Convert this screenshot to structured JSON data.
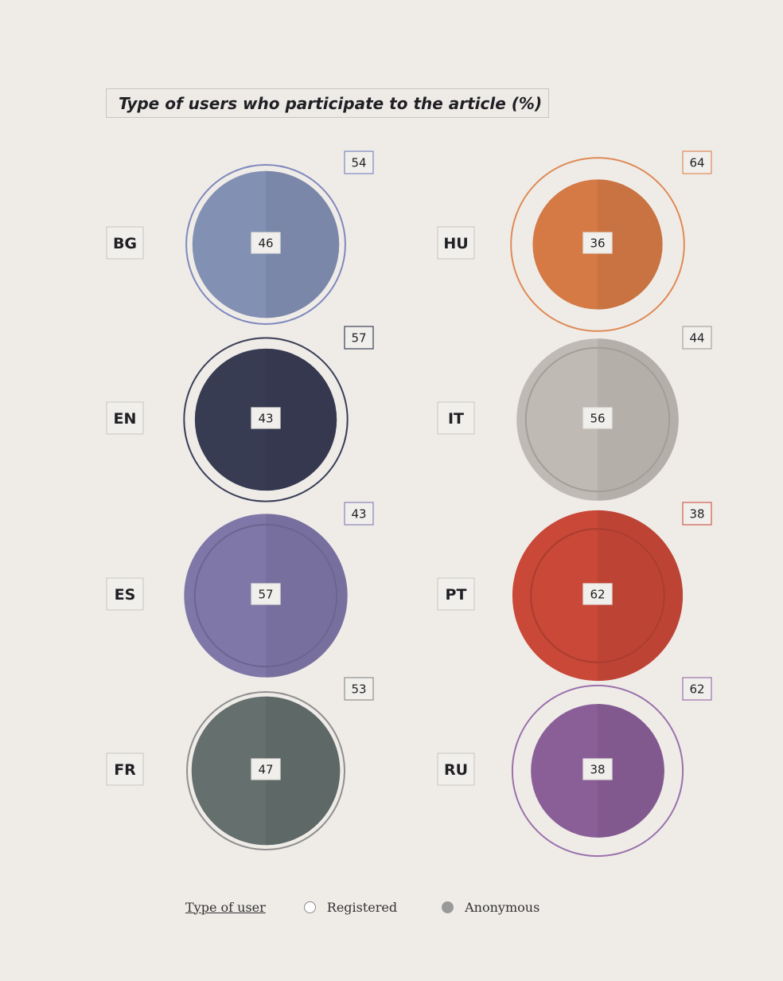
{
  "chart_data": {
    "type": "proportional-circles",
    "title": "Type of users who participate to the article (%)",
    "series_names": [
      "Registered",
      "Anonymous"
    ],
    "legend": {
      "title": "Type of user",
      "items": [
        "Registered",
        "Anonymous"
      ],
      "position": "bottom"
    },
    "groups": [
      {
        "label": "BG",
        "registered": 54,
        "anonymous": 46,
        "color": "#8290b3",
        "ring": "#7f88bd"
      },
      {
        "label": "EN",
        "registered": 57,
        "anonymous": 43,
        "color": "#383c53",
        "ring": "#3b3f57"
      },
      {
        "label": "ES",
        "registered": 43,
        "anonymous": 57,
        "color": "#7f77a8",
        "ring": "#8a84b8"
      },
      {
        "label": "FR",
        "registered": 53,
        "anonymous": 47,
        "color": "#646f6e",
        "ring": "#8f8f8f"
      },
      {
        "label": "HU",
        "registered": 64,
        "anonymous": 36,
        "color": "#d57a45",
        "ring": "#df8a55"
      },
      {
        "label": "IT",
        "registered": 44,
        "anonymous": 56,
        "color": "#bfbab3",
        "ring": "#a9a49d"
      },
      {
        "label": "PT",
        "registered": 38,
        "anonymous": 62,
        "color": "#c94838",
        "ring": "#d05c4c"
      },
      {
        "label": "RU",
        "registered": 62,
        "anonymous": 38,
        "color": "#8a5f98",
        "ring": "#9b71ab"
      }
    ]
  }
}
